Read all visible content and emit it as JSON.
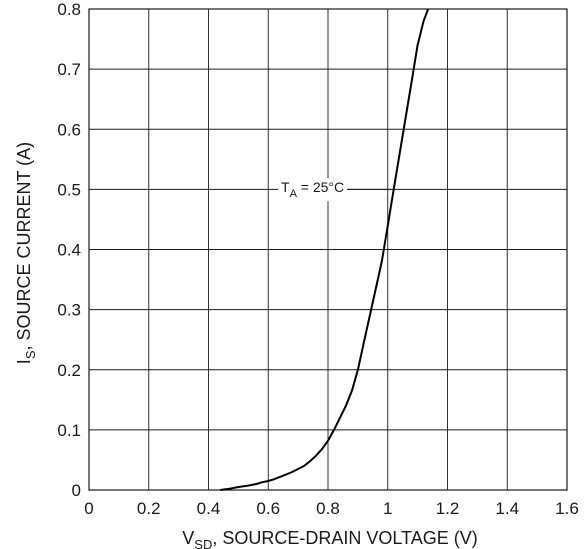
{
  "chart_data": {
    "type": "line",
    "x_ticks": [
      "0",
      "0.2",
      "0.4",
      "0.6",
      "0.8",
      "1",
      "1.2",
      "1.4",
      "1.6"
    ],
    "y_ticks": [
      "0",
      "0.1",
      "0.2",
      "0.3",
      "0.4",
      "0.5",
      "0.6",
      "0.7",
      "0.8"
    ],
    "xlim": [
      0,
      1.6
    ],
    "ylim": [
      0,
      0.8
    ],
    "grid": true,
    "xlabel": {
      "main": "V",
      "sub": "SD",
      "rest": ", SOURCE-DRAIN VOLTAGE (V)"
    },
    "ylabel": {
      "main": "I",
      "sub": "S",
      "rest": ", SOURCE CURRENT (A)"
    },
    "annotation": {
      "main": "T",
      "sub": "A",
      "rest": " = 25°C"
    },
    "series": [
      {
        "x": [
          0.44,
          0.47,
          0.5,
          0.53,
          0.56,
          0.58,
          0.6,
          0.62,
          0.64,
          0.66,
          0.68,
          0.7,
          0.72,
          0.74,
          0.76,
          0.78,
          0.8,
          0.82,
          0.84,
          0.86,
          0.88,
          0.9,
          0.92,
          0.94,
          0.96,
          0.98,
          1.0,
          1.02,
          1.04,
          1.06,
          1.08,
          1.1,
          1.12,
          1.135
        ],
        "y": [
          0.0,
          0.002,
          0.005,
          0.007,
          0.01,
          0.013,
          0.015,
          0.018,
          0.022,
          0.026,
          0.03,
          0.035,
          0.04,
          0.048,
          0.057,
          0.068,
          0.082,
          0.1,
          0.12,
          0.14,
          0.165,
          0.2,
          0.245,
          0.29,
          0.335,
          0.38,
          0.44,
          0.5,
          0.56,
          0.62,
          0.68,
          0.74,
          0.78,
          0.8
        ]
      }
    ]
  }
}
